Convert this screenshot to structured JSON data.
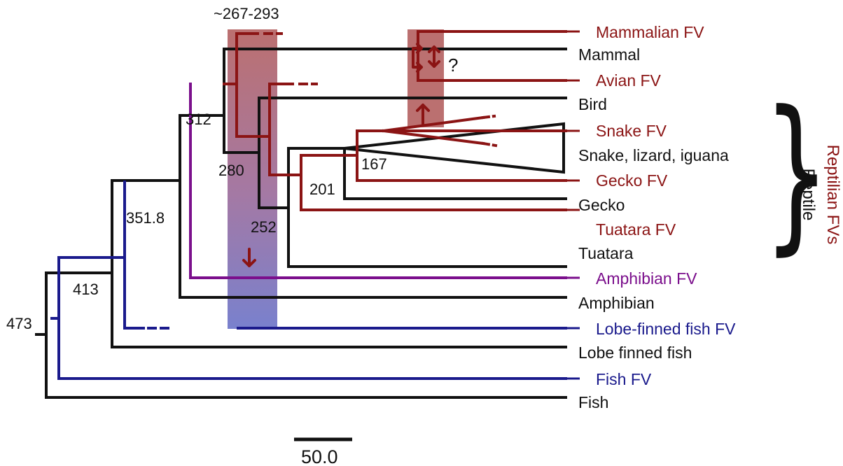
{
  "colors": {
    "host": "#111111",
    "reptilian": "#8b1414",
    "amphibian": "#7b0f8c",
    "fish": "#1a1a8c"
  },
  "labels": {
    "mammalian_fv": "Mammalian FV",
    "mammal": "Mammal",
    "avian_fv": "Avian FV",
    "bird": "Bird",
    "snake_fv": "Snake FV",
    "squamates": "Snake, lizard, iguana",
    "gecko_fv": "Gecko FV",
    "gecko": "Gecko",
    "tuatara_fv": "Tuatara FV",
    "tuatara": "Tuatara",
    "amphibian_fv": "Amphibian FV",
    "amphibian": "Amphibian",
    "lobe_fish_fv": "Lobe-finned fish FV",
    "lobe_fish": "Lobe finned fish",
    "fish_fv": "Fish FV",
    "fish": "Fish"
  },
  "node_ages": {
    "root": "473",
    "n413": "413",
    "n351": "351.8",
    "n312": "312",
    "n280": "280",
    "n252": "252",
    "n201": "201",
    "n167": "167",
    "span": "~267-293"
  },
  "question_mark": "?",
  "bracket": {
    "outer": "Reptilian FVs",
    "inner": "Reptile"
  },
  "scale_bar": {
    "label": "50.0"
  }
}
